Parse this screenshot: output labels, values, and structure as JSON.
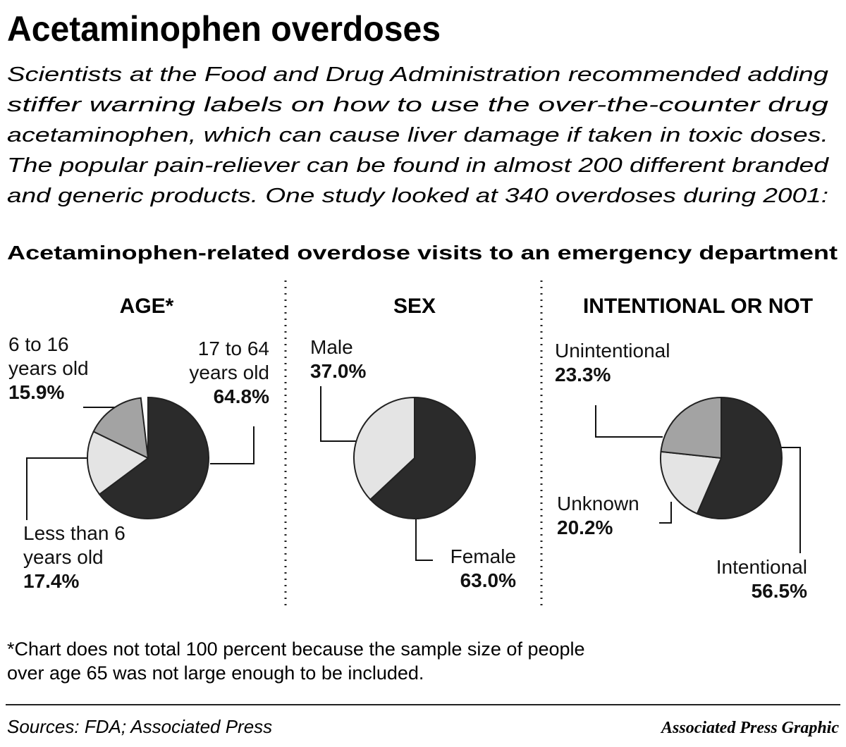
{
  "headline": "Acetaminophen overdoses",
  "intro": [
    "Scientists at the Food and Drug Administration recommended adding",
    "stiffer warning labels on how to use the over-the-counter drug",
    "acetaminophen, which can cause liver damage if taken in toxic doses.",
    "The popular pain-reliever can be found in almost 200 different branded",
    "and generic products. One study looked at 340 overdoses during 2001:"
  ],
  "subtitle": "Acetaminophen-related overdose visits to an emergency department",
  "footnote": [
    "*Chart does not total 100 percent because the sample size of people",
    "over age 65 was not large enough to be included."
  ],
  "sources": "Sources: FDA; Associated Press",
  "credit": "Associated Press Graphic",
  "chart_data": [
    {
      "type": "pie",
      "title": "AGE*",
      "categories": [
        "17 to 64 years old",
        "Less than 6 years old",
        "6 to 16 years old"
      ],
      "values": [
        64.8,
        17.4,
        15.9
      ],
      "value_labels": [
        "64.8%",
        "17.4%",
        "15.9%"
      ],
      "colors": [
        "#2b2b2b",
        "#e4e4e4",
        "#a3a3a3"
      ]
    },
    {
      "type": "pie",
      "title": "SEX",
      "categories": [
        "Female",
        "Male"
      ],
      "values": [
        63.0,
        37.0
      ],
      "value_labels": [
        "63.0%",
        "37.0%"
      ],
      "colors": [
        "#2b2b2b",
        "#e4e4e4"
      ]
    },
    {
      "type": "pie",
      "title": "INTENTIONAL OR NOT",
      "categories": [
        "Intentional",
        "Unknown",
        "Unintentional"
      ],
      "values": [
        56.5,
        20.2,
        23.3
      ],
      "value_labels": [
        "56.5%",
        "20.2%",
        "23.3%"
      ],
      "colors": [
        "#2b2b2b",
        "#e4e4e4",
        "#a3a3a3"
      ]
    }
  ]
}
